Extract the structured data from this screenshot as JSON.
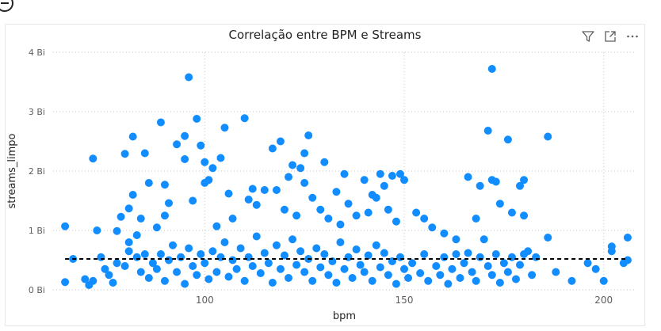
{
  "chart_data": {
    "type": "scatter",
    "title": "Correlação entre BPM e Streams",
    "xlabel": "bpm",
    "ylabel": "streams_limpo",
    "xlim": [
      62,
      208
    ],
    "ylim": [
      0,
      4
    ],
    "x_ticks": [
      "100",
      "150",
      "200"
    ],
    "y_ticks": [
      "0 Bi",
      "1 Bi",
      "2 Bi",
      "3 Bi",
      "4 Bi"
    ],
    "y_unit": "Bi",
    "grid": true,
    "trend_line": {
      "style": "dashed",
      "y": 0.52,
      "x_start": 65,
      "x_end": 206
    },
    "color": "#118DFF",
    "series": [
      {
        "points": [
          [
            65,
            1.07
          ],
          [
            65,
            0.13
          ],
          [
            67,
            0.52
          ],
          [
            72,
            2.21
          ],
          [
            72,
            0.15
          ],
          [
            73,
            1.0
          ],
          [
            75,
            0.35
          ],
          [
            76,
            0.25
          ],
          [
            78,
            0.99
          ],
          [
            79,
            1.23
          ],
          [
            80,
            2.29
          ],
          [
            81,
            1.37
          ],
          [
            81,
            0.8
          ],
          [
            82,
            2.58
          ],
          [
            82,
            1.6
          ],
          [
            83,
            0.92
          ],
          [
            84,
            1.2
          ],
          [
            85,
            2.3
          ],
          [
            86,
            1.8
          ],
          [
            88,
            1.05
          ],
          [
            89,
            2.82
          ],
          [
            90,
            1.77
          ],
          [
            90,
            1.25
          ],
          [
            91,
            1.46
          ],
          [
            93,
            2.45
          ],
          [
            95,
            2.59
          ],
          [
            95,
            2.2
          ],
          [
            96,
            3.58
          ],
          [
            97,
            1.5
          ],
          [
            98,
            2.88
          ],
          [
            99,
            2.43
          ],
          [
            100,
            2.15
          ],
          [
            100,
            1.8
          ],
          [
            101,
            1.85
          ],
          [
            102,
            2.05
          ],
          [
            103,
            1.07
          ],
          [
            104,
            2.22
          ],
          [
            105,
            2.73
          ],
          [
            106,
            1.62
          ],
          [
            107,
            1.2
          ],
          [
            110,
            2.89
          ],
          [
            111,
            1.52
          ],
          [
            112,
            1.7
          ],
          [
            113,
            1.43
          ],
          [
            115,
            1.68
          ],
          [
            117,
            2.38
          ],
          [
            118,
            1.68
          ],
          [
            119,
            2.5
          ],
          [
            120,
            1.35
          ],
          [
            121,
            1.9
          ],
          [
            122,
            2.1
          ],
          [
            123,
            1.25
          ],
          [
            124,
            2.05
          ],
          [
            125,
            2.3
          ],
          [
            125,
            1.8
          ],
          [
            126,
            2.6
          ],
          [
            127,
            1.55
          ],
          [
            129,
            1.35
          ],
          [
            130,
            2.15
          ],
          [
            131,
            1.2
          ],
          [
            133,
            1.65
          ],
          [
            134,
            1.1
          ],
          [
            135,
            1.95
          ],
          [
            136,
            1.45
          ],
          [
            138,
            1.25
          ],
          [
            140,
            1.85
          ],
          [
            141,
            1.3
          ],
          [
            142,
            1.6
          ],
          [
            143,
            1.55
          ],
          [
            144,
            1.95
          ],
          [
            145,
            1.75
          ],
          [
            146,
            1.35
          ],
          [
            147,
            1.92
          ],
          [
            148,
            1.15
          ],
          [
            149,
            1.95
          ],
          [
            150,
            1.85
          ],
          [
            153,
            1.3
          ],
          [
            155,
            1.2
          ],
          [
            157,
            1.05
          ],
          [
            160,
            0.95
          ],
          [
            163,
            0.85
          ],
          [
            166,
            1.9
          ],
          [
            168,
            1.2
          ],
          [
            169,
            1.75
          ],
          [
            171,
            2.68
          ],
          [
            172,
            3.72
          ],
          [
            172,
            1.85
          ],
          [
            173,
            1.82
          ],
          [
            174,
            1.45
          ],
          [
            176,
            2.53
          ],
          [
            177,
            1.3
          ],
          [
            179,
            1.75
          ],
          [
            180,
            1.85
          ],
          [
            180,
            1.25
          ],
          [
            181,
            0.65
          ],
          [
            183,
            0.55
          ],
          [
            186,
            2.58
          ],
          [
            186,
            0.88
          ],
          [
            188,
            0.3
          ],
          [
            192,
            0.15
          ],
          [
            196,
            0.45
          ],
          [
            198,
            0.35
          ],
          [
            200,
            0.15
          ],
          [
            202,
            0.73
          ],
          [
            202,
            0.65
          ],
          [
            205,
            0.45
          ],
          [
            206,
            0.88
          ],
          [
            206,
            0.5
          ],
          [
            70,
            0.18
          ],
          [
            71,
            0.08
          ],
          [
            74,
            0.55
          ],
          [
            77,
            0.12
          ],
          [
            78,
            0.45
          ],
          [
            80,
            0.4
          ],
          [
            81,
            0.65
          ],
          [
            83,
            0.55
          ],
          [
            84,
            0.3
          ],
          [
            85,
            0.6
          ],
          [
            86,
            0.2
          ],
          [
            87,
            0.45
          ],
          [
            88,
            0.35
          ],
          [
            89,
            0.6
          ],
          [
            90,
            0.15
          ],
          [
            91,
            0.5
          ],
          [
            92,
            0.75
          ],
          [
            93,
            0.3
          ],
          [
            94,
            0.55
          ],
          [
            95,
            0.1
          ],
          [
            96,
            0.7
          ],
          [
            97,
            0.4
          ],
          [
            98,
            0.25
          ],
          [
            99,
            0.6
          ],
          [
            100,
            0.45
          ],
          [
            101,
            0.18
          ],
          [
            102,
            0.65
          ],
          [
            103,
            0.3
          ],
          [
            104,
            0.55
          ],
          [
            105,
            0.8
          ],
          [
            106,
            0.22
          ],
          [
            107,
            0.5
          ],
          [
            108,
            0.35
          ],
          [
            109,
            0.7
          ],
          [
            110,
            0.15
          ],
          [
            111,
            0.55
          ],
          [
            112,
            0.4
          ],
          [
            113,
            0.9
          ],
          [
            114,
            0.28
          ],
          [
            115,
            0.62
          ],
          [
            116,
            0.45
          ],
          [
            117,
            0.12
          ],
          [
            118,
            0.75
          ],
          [
            119,
            0.35
          ],
          [
            120,
            0.58
          ],
          [
            121,
            0.2
          ],
          [
            122,
            0.85
          ],
          [
            123,
            0.42
          ],
          [
            124,
            0.65
          ],
          [
            125,
            0.3
          ],
          [
            126,
            0.52
          ],
          [
            127,
            0.15
          ],
          [
            128,
            0.7
          ],
          [
            129,
            0.38
          ],
          [
            130,
            0.6
          ],
          [
            131,
            0.25
          ],
          [
            132,
            0.48
          ],
          [
            133,
            0.12
          ],
          [
            134,
            0.8
          ],
          [
            135,
            0.35
          ],
          [
            136,
            0.55
          ],
          [
            137,
            0.2
          ],
          [
            138,
            0.68
          ],
          [
            139,
            0.42
          ],
          [
            140,
            0.3
          ],
          [
            141,
            0.58
          ],
          [
            142,
            0.15
          ],
          [
            143,
            0.75
          ],
          [
            144,
            0.38
          ],
          [
            145,
            0.62
          ],
          [
            146,
            0.25
          ],
          [
            147,
            0.48
          ],
          [
            148,
            0.1
          ],
          [
            149,
            0.55
          ],
          [
            150,
            0.35
          ],
          [
            151,
            0.2
          ],
          [
            152,
            0.45
          ],
          [
            154,
            0.28
          ],
          [
            155,
            0.6
          ],
          [
            156,
            0.15
          ],
          [
            158,
            0.4
          ],
          [
            159,
            0.25
          ],
          [
            160,
            0.55
          ],
          [
            161,
            0.1
          ],
          [
            162,
            0.35
          ],
          [
            163,
            0.6
          ],
          [
            164,
            0.2
          ],
          [
            165,
            0.45
          ],
          [
            166,
            0.62
          ],
          [
            167,
            0.3
          ],
          [
            168,
            0.15
          ],
          [
            169,
            0.55
          ],
          [
            170,
            0.85
          ],
          [
            171,
            0.4
          ],
          [
            172,
            0.25
          ],
          [
            173,
            0.6
          ],
          [
            174,
            0.12
          ],
          [
            175,
            0.45
          ],
          [
            176,
            0.3
          ],
          [
            177,
            0.55
          ],
          [
            178,
            0.18
          ],
          [
            179,
            0.42
          ],
          [
            180,
            0.6
          ],
          [
            182,
            0.25
          ]
        ]
      }
    ]
  }
}
